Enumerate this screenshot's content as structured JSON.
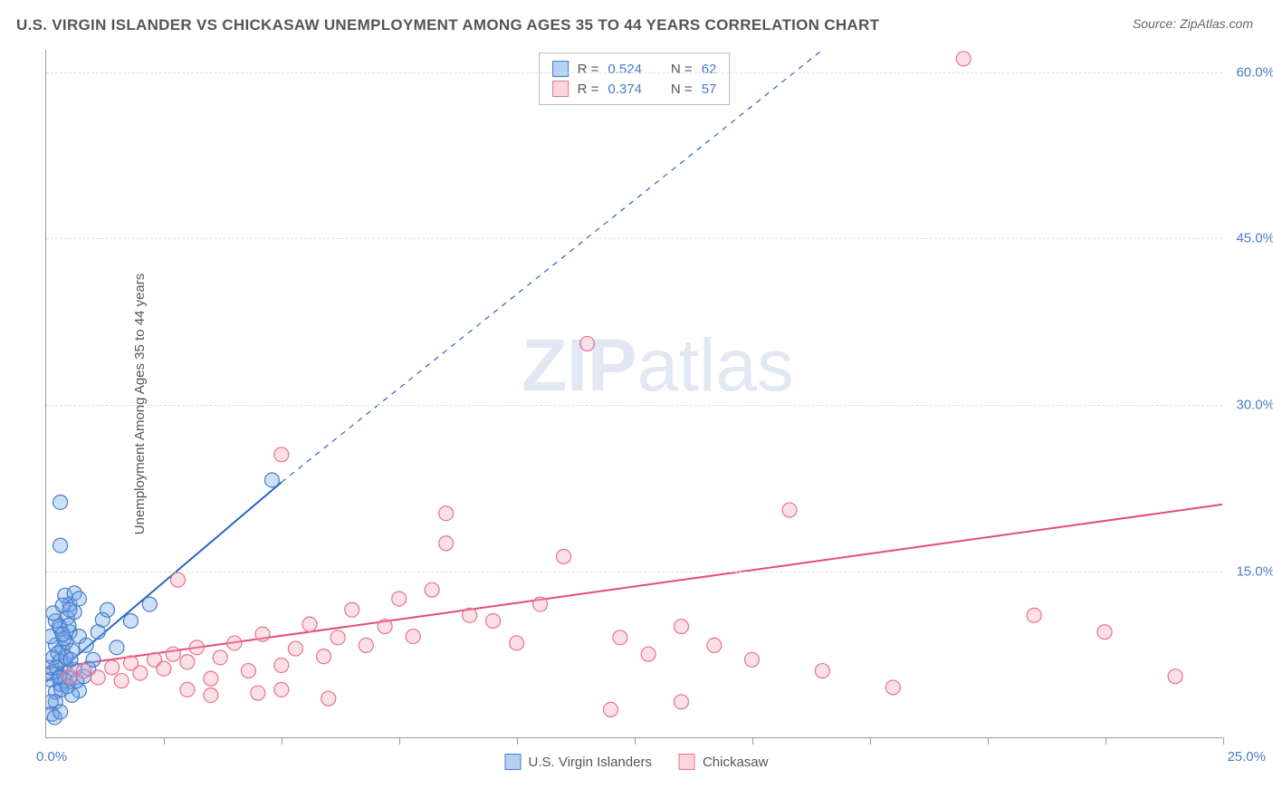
{
  "title": "U.S. VIRGIN ISLANDER VS CHICKASAW UNEMPLOYMENT AMONG AGES 35 TO 44 YEARS CORRELATION CHART",
  "source": "Source: ZipAtlas.com",
  "ylabel": "Unemployment Among Ages 35 to 44 years",
  "watermark_bold": "ZIP",
  "watermark_light": "atlas",
  "chart": {
    "type": "scatter",
    "xlim": [
      0,
      25
    ],
    "ylim": [
      0,
      62
    ],
    "xtick_positions": [
      2.5,
      5,
      7.5,
      10,
      12.5,
      15,
      17.5,
      20,
      22.5,
      25
    ],
    "ytick_labels": [
      "15.0%",
      "30.0%",
      "45.0%",
      "60.0%"
    ],
    "ytick_positions": [
      15,
      30,
      45,
      60
    ],
    "origin_label": "0.0%",
    "x_max_label": "25.0%",
    "background_color": "#ffffff",
    "grid_color": "#dddddd",
    "axis_color": "#999999",
    "label_color": "#555555",
    "tick_label_color": "#4a7bc8",
    "marker_radius": 8,
    "marker_fill_opacity": 0.35,
    "marker_stroke_width": 1.2,
    "line_width": 2,
    "dashed_line_width": 1.2
  },
  "series": [
    {
      "name": "U.S. Virgin Islanders",
      "color": "#6aa3e8",
      "stroke": "#4a7bc8",
      "line_color": "#2866c4",
      "R": "0.524",
      "N": "62",
      "trend_solid": {
        "x1": 0,
        "y1": 5,
        "x2": 5,
        "y2": 23
      },
      "trend_dashed": {
        "x1": 5,
        "y1": 23,
        "x2": 16.5,
        "y2": 62
      },
      "points": [
        [
          0.1,
          5.2
        ],
        [
          0.2,
          4.1
        ],
        [
          0.1,
          5.8
        ],
        [
          0.2,
          3.2
        ],
        [
          0.3,
          5.5
        ],
        [
          0.1,
          6.3
        ],
        [
          0.3,
          4.8
        ],
        [
          0.15,
          7.2
        ],
        [
          0.2,
          8.3
        ],
        [
          0.1,
          9.1
        ],
        [
          0.3,
          9.8
        ],
        [
          0.2,
          10.5
        ],
        [
          0.15,
          11.2
        ],
        [
          0.35,
          8.0
        ],
        [
          0.4,
          6.5
        ],
        [
          0.25,
          7.6
        ],
        [
          0.1,
          3.2
        ],
        [
          0.12,
          2.1
        ],
        [
          0.18,
          1.8
        ],
        [
          0.3,
          2.3
        ],
        [
          0.3,
          21.2
        ],
        [
          0.3,
          17.3
        ],
        [
          0.5,
          5.3
        ],
        [
          0.6,
          6.1
        ],
        [
          0.55,
          7.8
        ],
        [
          0.7,
          4.2
        ],
        [
          0.65,
          5.1
        ],
        [
          0.5,
          9.5
        ],
        [
          0.45,
          10.8
        ],
        [
          0.6,
          11.3
        ],
        [
          0.5,
          12.0
        ],
        [
          0.42,
          8.6
        ],
        [
          0.7,
          9.1
        ],
        [
          0.8,
          5.5
        ],
        [
          0.9,
          6.2
        ],
        [
          1.0,
          7.0
        ],
        [
          0.85,
          8.3
        ],
        [
          1.1,
          9.5
        ],
        [
          1.2,
          10.6
        ],
        [
          1.3,
          11.5
        ],
        [
          1.5,
          8.1
        ],
        [
          1.8,
          10.5
        ],
        [
          2.2,
          12.0
        ],
        [
          0.4,
          12.8
        ],
        [
          0.6,
          13.0
        ],
        [
          4.8,
          23.2
        ],
        [
          0.35,
          11.9
        ],
        [
          0.28,
          10.0
        ],
        [
          0.5,
          11.5
        ],
        [
          0.7,
          12.5
        ],
        [
          0.3,
          6.9
        ],
        [
          0.4,
          5.1
        ],
        [
          0.55,
          3.8
        ],
        [
          0.32,
          4.3
        ],
        [
          0.42,
          7.2
        ],
        [
          0.22,
          6.3
        ],
        [
          0.38,
          8.9
        ],
        [
          0.48,
          10.1
        ],
        [
          0.28,
          5.4
        ],
        [
          0.52,
          7.0
        ],
        [
          0.45,
          4.6
        ],
        [
          0.35,
          9.3
        ]
      ]
    },
    {
      "name": "Chickasaw",
      "color": "#f5a5ba",
      "stroke": "#e8718f",
      "line_color": "#e54b7a",
      "R": "0.374",
      "N": "57",
      "trend_solid": {
        "x1": 0,
        "y1": 6.2,
        "x2": 25,
        "y2": 21.0
      },
      "points": [
        [
          0.5,
          5.5
        ],
        [
          0.8,
          6.0
        ],
        [
          1.1,
          5.4
        ],
        [
          1.4,
          6.3
        ],
        [
          1.6,
          5.1
        ],
        [
          1.8,
          6.7
        ],
        [
          2.0,
          5.8
        ],
        [
          2.3,
          7.0
        ],
        [
          2.5,
          6.2
        ],
        [
          2.7,
          7.5
        ],
        [
          3.0,
          6.8
        ],
        [
          3.2,
          8.1
        ],
        [
          3.5,
          5.3
        ],
        [
          3.7,
          7.2
        ],
        [
          4.0,
          8.5
        ],
        [
          4.3,
          6.0
        ],
        [
          4.6,
          9.3
        ],
        [
          5.0,
          6.5
        ],
        [
          5.0,
          25.5
        ],
        [
          5.3,
          8.0
        ],
        [
          5.6,
          10.2
        ],
        [
          5.9,
          7.3
        ],
        [
          6.2,
          9.0
        ],
        [
          6.5,
          11.5
        ],
        [
          6.8,
          8.3
        ],
        [
          7.2,
          10.0
        ],
        [
          7.5,
          12.5
        ],
        [
          7.8,
          9.1
        ],
        [
          8.2,
          13.3
        ],
        [
          8.5,
          20.2
        ],
        [
          3.0,
          4.3
        ],
        [
          3.5,
          3.8
        ],
        [
          4.5,
          4.0
        ],
        [
          5.0,
          4.3
        ],
        [
          6.0,
          3.5
        ],
        [
          9.0,
          11.0
        ],
        [
          9.5,
          10.5
        ],
        [
          10.0,
          8.5
        ],
        [
          10.5,
          12.0
        ],
        [
          11.0,
          16.3
        ],
        [
          11.5,
          35.5
        ],
        [
          12.2,
          9.0
        ],
        [
          12.8,
          7.5
        ],
        [
          13.5,
          10.0
        ],
        [
          14.2,
          8.3
        ],
        [
          15.0,
          7.0
        ],
        [
          15.8,
          20.5
        ],
        [
          12.0,
          2.5
        ],
        [
          13.5,
          3.2
        ],
        [
          16.5,
          6.0
        ],
        [
          18.0,
          4.5
        ],
        [
          19.5,
          61.2
        ],
        [
          21.0,
          11.0
        ],
        [
          22.5,
          9.5
        ],
        [
          24.0,
          5.5
        ],
        [
          8.5,
          17.5
        ],
        [
          2.8,
          14.2
        ]
      ]
    }
  ],
  "legend_top": {
    "r_label": "R =",
    "n_label": "N ="
  },
  "legend_bottom": [
    {
      "label": "U.S. Virgin Islanders",
      "fill": "#b3d1f5",
      "stroke": "#4a7bc8"
    },
    {
      "label": "Chickasaw",
      "fill": "#fbd5de",
      "stroke": "#e8718f"
    }
  ]
}
